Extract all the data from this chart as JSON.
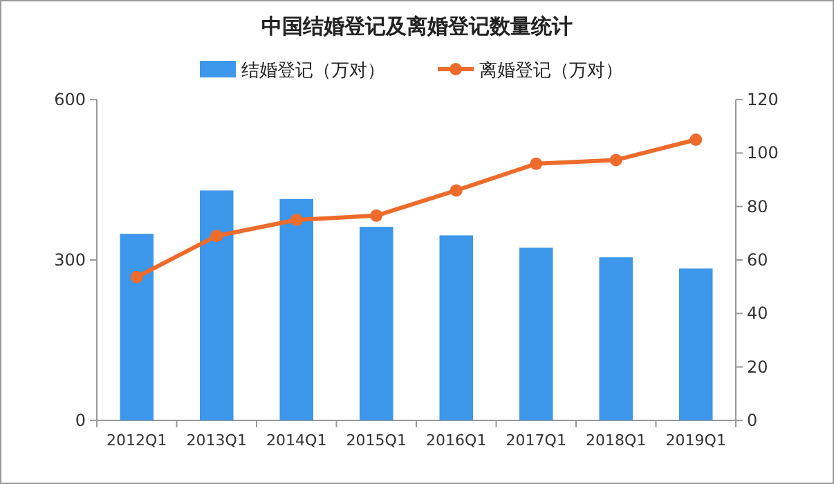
{
  "chart_data": {
    "type": "bar",
    "title": "中国结婚登记及离婚登记数量统计",
    "categories": [
      "2012Q1",
      "2013Q1",
      "2014Q1",
      "2015Q1",
      "2016Q1",
      "2017Q1",
      "2018Q1",
      "2019Q1"
    ],
    "series": [
      {
        "name": "结婚登记（万对）",
        "color": "#3d97ea",
        "values": [
          349,
          430,
          414,
          362,
          346,
          323,
          305,
          284
        ]
      },
      {
        "name": "离婚登记（万对）",
        "type": "line",
        "axis": "y2",
        "color": "#ed6b2b",
        "values": [
          53.6,
          69,
          75,
          76.6,
          86,
          96,
          97.4,
          105
        ]
      }
    ],
    "ylim": [
      0,
      600
    ],
    "yticks": [
      0,
      300,
      600
    ],
    "y2lim": [
      0,
      120
    ],
    "y2ticks": [
      0,
      20,
      40,
      60,
      80,
      100,
      120
    ],
    "legend": "top",
    "marker": "circle"
  }
}
